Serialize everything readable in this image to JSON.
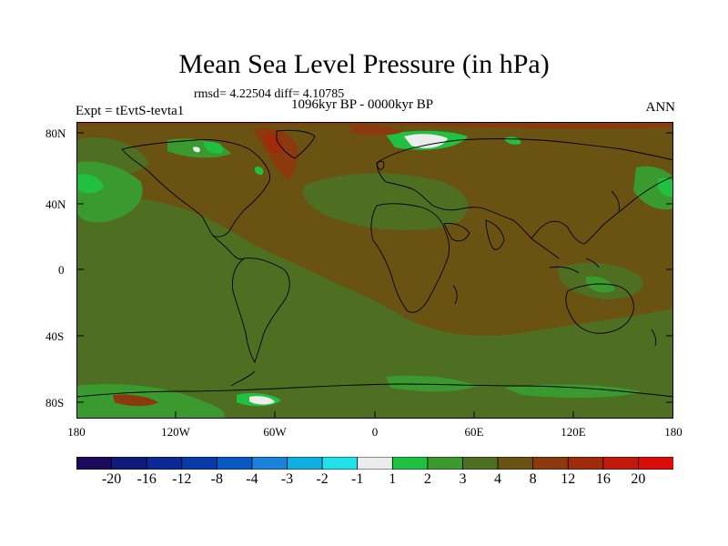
{
  "title": "Mean Sea Level Pressure (in hPa)",
  "stats": "rmsd= 4.22504 diff= 4.10785",
  "period": "1096kyr BP - 0000kyr BP",
  "experiment": "Expt = tEvtS-tevta1",
  "season": "ANN",
  "lat_labels": [
    "80N",
    "40N",
    "0",
    "40S",
    "80S"
  ],
  "lon_labels": [
    "180",
    "120W",
    "60W",
    "0",
    "60E",
    "120E",
    "180"
  ],
  "colorbar": {
    "labels": [
      "-20",
      "-16",
      "-12",
      "-8",
      "-4",
      "-3",
      "-2",
      "-1",
      "1",
      "2",
      "3",
      "4",
      "8",
      "12",
      "16",
      "20"
    ],
    "colors": [
      "#1b0a5a",
      "#101a78",
      "#0c2894",
      "#0a3aa8",
      "#0a58c2",
      "#1a82d8",
      "#10aee0",
      "#20e0e8",
      "#ececec",
      "#20c040",
      "#3a9a30",
      "#4e6e22",
      "#6a5212",
      "#8a3a0e",
      "#a02a0c",
      "#c01a0a",
      "#d80c08"
    ]
  },
  "map_colors": {
    "background": "#6a5212",
    "level_4_8": "#6a5212",
    "level_3_4": "#4e6e22",
    "level_2_3": "#3a9a30",
    "level_1_2": "#20c040",
    "level_m1_1": "#ececec",
    "level_8_12": "#8a3a0e",
    "level_12_16": "#a02a0c"
  }
}
